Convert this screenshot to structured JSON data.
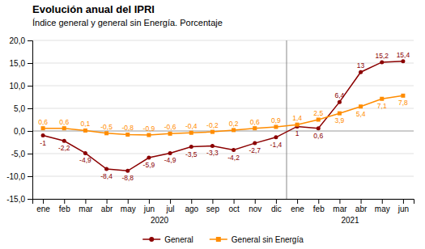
{
  "chart_data": {
    "type": "line",
    "title": "Evolución anual del IPRI",
    "subtitle": "Índice general y general sin Energía. Porcentaje",
    "categories": [
      "ene",
      "feb",
      "mar",
      "abr",
      "may",
      "jun",
      "jul",
      "ago",
      "sep",
      "oct",
      "nov",
      "dic",
      "ene",
      "feb",
      "mar",
      "abr",
      "may",
      "jun"
    ],
    "series": [
      {
        "name": "General",
        "color": "#8B0000",
        "marker": "circle",
        "values": [
          -1.0,
          -2.2,
          -4.9,
          -8.4,
          -8.8,
          -5.9,
          -4.9,
          -3.5,
          -3.3,
          -4.2,
          -2.7,
          -1.4,
          1.0,
          0.6,
          6.4,
          13.0,
          15.2,
          15.4
        ],
        "value_labels": [
          "-1",
          "-2,2",
          "-4,9",
          "-8,4",
          "-8,8",
          "-5,9",
          "-4,9",
          "-3,5",
          "-3,3",
          "-4,2",
          "-2,7",
          "-1,4",
          "1",
          "0,6",
          "6,4",
          "13",
          "15,2",
          "15,4"
        ]
      },
      {
        "name": "General sin Energía",
        "color": "#FF8C00",
        "marker": "square",
        "values": [
          0.6,
          0.6,
          0.1,
          -0.5,
          -0.8,
          -0.9,
          -0.6,
          -0.4,
          -0.2,
          0.2,
          0.6,
          0.9,
          1.4,
          2.5,
          3.9,
          5.4,
          7.1,
          7.8
        ],
        "value_labels": [
          "0,6",
          "0,6",
          "0,1",
          "-0,5",
          "-0,8",
          "-0,9",
          "-0,6",
          "-0,4",
          "-0,2",
          "0,2",
          "0,6",
          "0,9",
          "1,4",
          "2,5",
          "3,9",
          "5,4",
          "7,1",
          "7,8"
        ]
      }
    ],
    "ylim": [
      -15.0,
      20.0
    ],
    "yticks": [
      {
        "value": -15.0,
        "label": "-15,0"
      },
      {
        "value": -10.0,
        "label": "-10,0"
      },
      {
        "value": -5.0,
        "label": "-5,0"
      },
      {
        "value": 0.0,
        "label": "0,0"
      },
      {
        "value": 5.0,
        "label": "5,0"
      },
      {
        "value": 10.0,
        "label": "10,0"
      },
      {
        "value": 15.0,
        "label": "15,0"
      },
      {
        "value": 20.0,
        "label": "20,0"
      }
    ],
    "grid": true,
    "legend": "bottom",
    "data_labels": true,
    "annotations": [
      "2020",
      "2021"
    ]
  }
}
